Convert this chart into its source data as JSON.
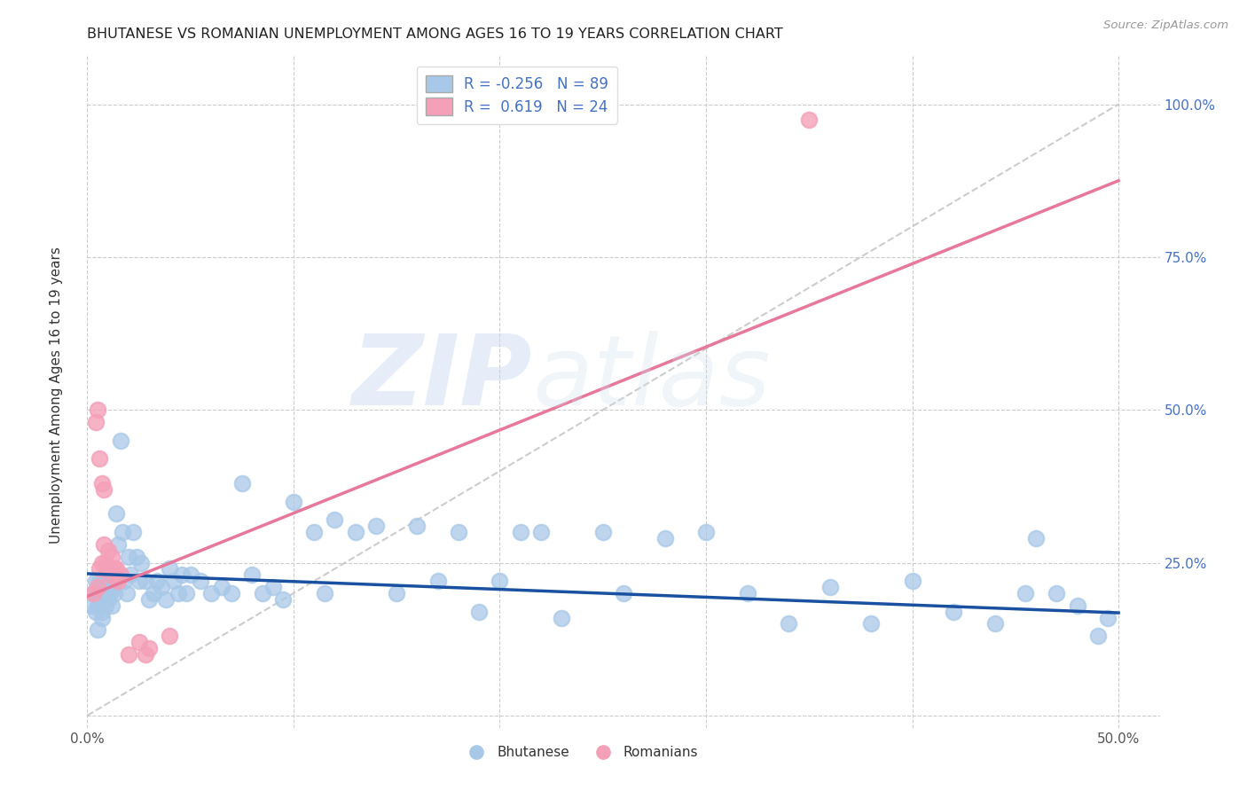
{
  "title": "BHUTANESE VS ROMANIAN UNEMPLOYMENT AMONG AGES 16 TO 19 YEARS CORRELATION CHART",
  "source": "Source: ZipAtlas.com",
  "ylabel": "Unemployment Among Ages 16 to 19 years",
  "xlim": [
    0.0,
    0.52
  ],
  "ylim": [
    -0.02,
    1.08
  ],
  "yticks": [
    0.0,
    0.25,
    0.5,
    0.75,
    1.0
  ],
  "ytick_labels": [
    "",
    "25.0%",
    "50.0%",
    "75.0%",
    "100.0%"
  ],
  "xticks": [
    0.0,
    0.1,
    0.2,
    0.3,
    0.4,
    0.5
  ],
  "xtick_labels": [
    "0.0%",
    "",
    "",
    "",
    "",
    "50.0%"
  ],
  "blue_R": -0.256,
  "blue_N": 89,
  "pink_R": 0.619,
  "pink_N": 24,
  "blue_color": "#a8c8e8",
  "pink_color": "#f4a0b8",
  "blue_line_color": "#1a50a0",
  "pink_line_color": "#e8789a",
  "diagonal_color": "#c0c0c0",
  "watermark_zip": "ZIP",
  "watermark_atlas": "atlas",
  "legend_label_blue": "Bhutanese",
  "legend_label_pink": "Romanians",
  "blue_line_x0": 0.0,
  "blue_line_y0": 0.232,
  "blue_line_x1": 0.5,
  "blue_line_y1": 0.168,
  "pink_line_x0": 0.0,
  "pink_line_y0": 0.195,
  "pink_line_x1": 0.5,
  "pink_line_y1": 0.875,
  "background_color": "#ffffff",
  "grid_color": "#cccccc",
  "blue_scatter_x": [
    0.002,
    0.003,
    0.004,
    0.004,
    0.005,
    0.005,
    0.005,
    0.006,
    0.006,
    0.007,
    0.007,
    0.007,
    0.008,
    0.008,
    0.009,
    0.009,
    0.01,
    0.01,
    0.011,
    0.011,
    0.012,
    0.012,
    0.013,
    0.013,
    0.014,
    0.015,
    0.016,
    0.017,
    0.018,
    0.019,
    0.02,
    0.021,
    0.022,
    0.024,
    0.025,
    0.026,
    0.028,
    0.03,
    0.032,
    0.034,
    0.036,
    0.038,
    0.04,
    0.042,
    0.044,
    0.046,
    0.048,
    0.05,
    0.055,
    0.06,
    0.065,
    0.07,
    0.075,
    0.08,
    0.085,
    0.09,
    0.095,
    0.1,
    0.11,
    0.115,
    0.12,
    0.13,
    0.14,
    0.15,
    0.16,
    0.17,
    0.18,
    0.19,
    0.2,
    0.21,
    0.22,
    0.23,
    0.25,
    0.26,
    0.28,
    0.3,
    0.32,
    0.34,
    0.36,
    0.38,
    0.4,
    0.42,
    0.44,
    0.455,
    0.46,
    0.47,
    0.48,
    0.49,
    0.495
  ],
  "blue_scatter_y": [
    0.18,
    0.2,
    0.17,
    0.22,
    0.18,
    0.2,
    0.14,
    0.19,
    0.22,
    0.17,
    0.21,
    0.16,
    0.2,
    0.22,
    0.18,
    0.23,
    0.21,
    0.19,
    0.22,
    0.2,
    0.21,
    0.18,
    0.2,
    0.22,
    0.33,
    0.28,
    0.45,
    0.3,
    0.22,
    0.2,
    0.26,
    0.23,
    0.3,
    0.26,
    0.22,
    0.25,
    0.22,
    0.19,
    0.2,
    0.22,
    0.21,
    0.19,
    0.24,
    0.22,
    0.2,
    0.23,
    0.2,
    0.23,
    0.22,
    0.2,
    0.21,
    0.2,
    0.38,
    0.23,
    0.2,
    0.21,
    0.19,
    0.35,
    0.3,
    0.2,
    0.32,
    0.3,
    0.31,
    0.2,
    0.31,
    0.22,
    0.3,
    0.17,
    0.22,
    0.3,
    0.3,
    0.16,
    0.3,
    0.2,
    0.29,
    0.3,
    0.2,
    0.15,
    0.21,
    0.15,
    0.22,
    0.17,
    0.15,
    0.2,
    0.29,
    0.2,
    0.18,
    0.13,
    0.16
  ],
  "pink_scatter_x": [
    0.003,
    0.004,
    0.005,
    0.005,
    0.006,
    0.006,
    0.007,
    0.007,
    0.008,
    0.008,
    0.009,
    0.01,
    0.011,
    0.012,
    0.013,
    0.014,
    0.015,
    0.016,
    0.02,
    0.025,
    0.028,
    0.03,
    0.04,
    0.35
  ],
  "pink_scatter_y": [
    0.2,
    0.48,
    0.21,
    0.5,
    0.24,
    0.42,
    0.38,
    0.25,
    0.37,
    0.28,
    0.25,
    0.27,
    0.23,
    0.26,
    0.24,
    0.24,
    0.22,
    0.23,
    0.1,
    0.12,
    0.1,
    0.11,
    0.13,
    0.975
  ]
}
